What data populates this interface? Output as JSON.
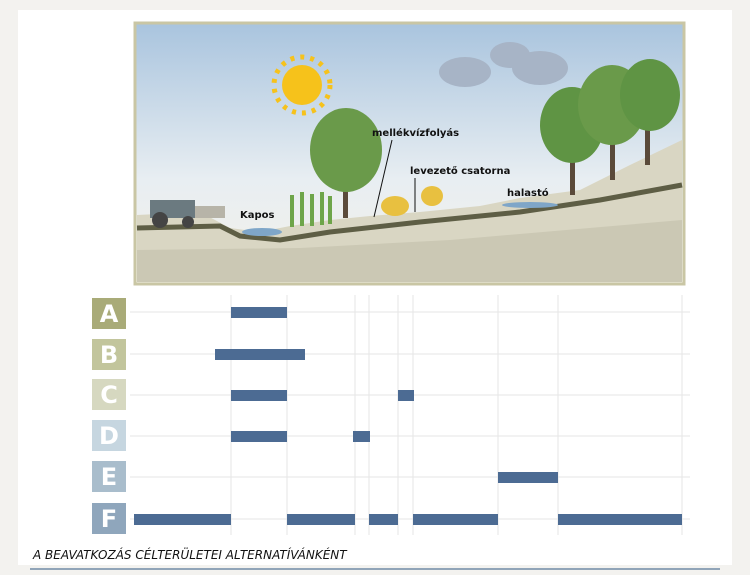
{
  "illustration": {
    "labels": [
      "Kapos",
      "mellékvízfolyás",
      "levezető csatorna",
      "halastó"
    ]
  },
  "rows": [
    "A",
    "B",
    "C",
    "D",
    "E",
    "F"
  ],
  "caption": "A BEAVATKOZÁS CÉLTERÜLETEI ALTERNATÍVÁNKÉNT"
}
